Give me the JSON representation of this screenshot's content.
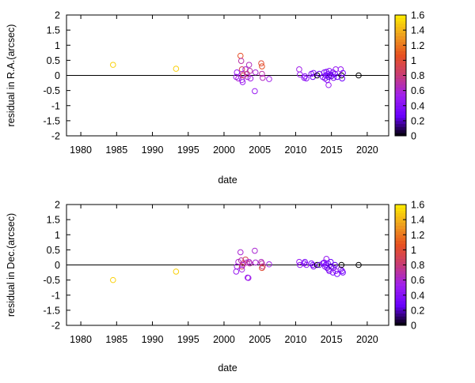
{
  "chart_data": [
    {
      "type": "scatter",
      "xlabel": "date",
      "ylabel": "residual in R.A.(arcsec)",
      "xlim": [
        1978,
        2023
      ],
      "ylim": [
        -2,
        2
      ],
      "xticks": [
        1980,
        1985,
        1990,
        1995,
        2000,
        2005,
        2010,
        2015,
        2020
      ],
      "yticks": [
        -2,
        -1.5,
        -1,
        -0.5,
        0,
        0.5,
        1,
        1.5,
        2
      ],
      "ytick_labels": [
        "-2",
        "-1.5",
        "-1",
        "-0.5",
        "0",
        "0.5",
        "1",
        "1.5",
        "2"
      ],
      "reference_line": 0,
      "colorbar": {
        "range": [
          0,
          1.6
        ],
        "ticks": [
          0,
          0.2,
          0.4,
          0.6,
          0.8,
          1,
          1.2,
          1.4,
          1.6
        ],
        "tick_labels": [
          "0",
          "0.2",
          "0.4",
          "0.6",
          "0.8",
          "1",
          "1.2",
          "1.4",
          "1.6"
        ],
        "palette": [
          "#000000",
          "#6a00ff",
          "#a020f0",
          "#c83c78",
          "#e85020",
          "#f0a020",
          "#ffee00"
        ]
      },
      "points": [
        [
          1984.5,
          0.35,
          1.5
        ],
        [
          1993.3,
          0.22,
          1.5
        ],
        [
          2001.7,
          -0.05,
          0.5
        ],
        [
          2001.8,
          0.1,
          0.5
        ],
        [
          2002.0,
          -0.1,
          0.6
        ],
        [
          2002.3,
          0.65,
          1.05
        ],
        [
          2002.4,
          0.48,
          0.7
        ],
        [
          2002.5,
          0.2,
          0.9
        ],
        [
          2002.5,
          -0.15,
          0.55
        ],
        [
          2002.6,
          -0.22,
          0.5
        ],
        [
          2002.6,
          0.05,
          0.6
        ],
        [
          2002.7,
          0.0,
          0.9
        ],
        [
          2003.0,
          0.2,
          0.6
        ],
        [
          2003.2,
          0.05,
          0.8
        ],
        [
          2003.3,
          -0.05,
          0.6
        ],
        [
          2003.5,
          0.35,
          0.65
        ],
        [
          2003.6,
          0.15,
          0.7
        ],
        [
          2003.7,
          -0.1,
          0.55
        ],
        [
          2004.3,
          -0.52,
          0.5
        ],
        [
          2004.4,
          0.1,
          0.6
        ],
        [
          2005.2,
          0.4,
          1.0
        ],
        [
          2005.3,
          0.3,
          1.05
        ],
        [
          2005.3,
          0.05,
          0.7
        ],
        [
          2005.4,
          -0.08,
          0.65
        ],
        [
          2006.3,
          -0.12,
          0.55
        ],
        [
          2010.5,
          0.2,
          0.55
        ],
        [
          2010.6,
          0.03,
          0.5
        ],
        [
          2011.2,
          -0.08,
          0.45
        ],
        [
          2011.3,
          -0.03,
          0.4
        ],
        [
          2011.5,
          -0.1,
          0.45
        ],
        [
          2012.2,
          0.05,
          0.35
        ],
        [
          2012.4,
          -0.05,
          0.3
        ],
        [
          2012.5,
          0.08,
          0.4
        ],
        [
          2013.0,
          0.0,
          0.0
        ],
        [
          2013.3,
          0.05,
          0.25
        ],
        [
          2013.8,
          -0.05,
          0.35
        ],
        [
          2014.0,
          0.1,
          0.4
        ],
        [
          2014.1,
          -0.1,
          0.45
        ],
        [
          2014.2,
          0.0,
          0.3
        ],
        [
          2014.3,
          0.12,
          0.35
        ],
        [
          2014.4,
          -0.15,
          0.4
        ],
        [
          2014.5,
          0.05,
          0.3
        ],
        [
          2014.6,
          -0.05,
          0.25
        ],
        [
          2014.6,
          -0.32,
          0.5
        ],
        [
          2014.7,
          0.15,
          0.45
        ],
        [
          2014.9,
          0.02,
          0.3
        ],
        [
          2015.0,
          -0.02,
          0.2
        ],
        [
          2015.2,
          0.1,
          0.35
        ],
        [
          2015.3,
          -0.08,
          0.4
        ],
        [
          2015.5,
          0.05,
          0.25
        ],
        [
          2015.6,
          0.2,
          0.5
        ],
        [
          2015.8,
          -0.05,
          0.3
        ],
        [
          2016.3,
          0.2,
          0.5
        ],
        [
          2016.4,
          0.0,
          0.0
        ],
        [
          2016.5,
          -0.1,
          0.3
        ],
        [
          2016.6,
          0.08,
          0.35
        ],
        [
          2018.8,
          0.0,
          0.0
        ]
      ]
    },
    {
      "type": "scatter",
      "xlabel": "date",
      "ylabel": "residual in Dec.(arcsec)",
      "xlim": [
        1978,
        2023
      ],
      "ylim": [
        -2,
        2
      ],
      "xticks": [
        1980,
        1985,
        1990,
        1995,
        2000,
        2005,
        2010,
        2015,
        2020
      ],
      "yticks": [
        -2,
        -1.5,
        -1,
        -0.5,
        0,
        0.5,
        1,
        1.5,
        2
      ],
      "ytick_labels": [
        "-2",
        "-1.5",
        "-1",
        "-0.5",
        "0",
        "0.5",
        "1",
        "1.5",
        "2"
      ],
      "reference_line": 0,
      "colorbar": {
        "range": [
          0,
          1.6
        ],
        "ticks": [
          0,
          0.2,
          0.4,
          0.6,
          0.8,
          1,
          1.2,
          1.4,
          1.6
        ],
        "tick_labels": [
          "0",
          "0.2",
          "0.4",
          "0.6",
          "0.8",
          "1",
          "1.2",
          "1.4",
          "1.6"
        ],
        "palette": [
          "#000000",
          "#6a00ff",
          "#a020f0",
          "#c83c78",
          "#e85020",
          "#f0a020",
          "#ffee00"
        ]
      },
      "points": [
        [
          1984.5,
          -0.5,
          1.5
        ],
        [
          1993.3,
          -0.22,
          1.5
        ],
        [
          2001.7,
          -0.22,
          0.5
        ],
        [
          2001.8,
          -0.05,
          0.55
        ],
        [
          2002.0,
          0.1,
          0.6
        ],
        [
          2002.3,
          0.42,
          0.6
        ],
        [
          2002.4,
          0.15,
          0.7
        ],
        [
          2002.5,
          -0.05,
          0.9
        ],
        [
          2002.5,
          -0.15,
          0.55
        ],
        [
          2002.6,
          0.0,
          0.6
        ],
        [
          2002.7,
          0.05,
          0.8
        ],
        [
          2003.0,
          0.18,
          0.9
        ],
        [
          2003.2,
          0.08,
          0.65
        ],
        [
          2003.3,
          -0.42,
          0.5
        ],
        [
          2003.4,
          -0.43,
          0.55
        ],
        [
          2003.5,
          0.1,
          0.6
        ],
        [
          2003.6,
          0.05,
          0.7
        ],
        [
          2004.3,
          0.47,
          0.6
        ],
        [
          2004.4,
          0.08,
          0.6
        ],
        [
          2005.2,
          0.1,
          0.65
        ],
        [
          2005.3,
          0.05,
          0.7
        ],
        [
          2005.3,
          -0.1,
          1.0
        ],
        [
          2005.4,
          -0.05,
          0.8
        ],
        [
          2006.3,
          0.02,
          0.55
        ],
        [
          2010.5,
          0.1,
          0.5
        ],
        [
          2010.6,
          0.0,
          0.45
        ],
        [
          2011.2,
          0.05,
          0.4
        ],
        [
          2011.3,
          0.1,
          0.35
        ],
        [
          2011.5,
          0.0,
          0.45
        ],
        [
          2012.2,
          0.05,
          0.35
        ],
        [
          2012.4,
          0.0,
          0.3
        ],
        [
          2012.5,
          -0.05,
          0.4
        ],
        [
          2013.0,
          0.0,
          0.0
        ],
        [
          2013.3,
          0.0,
          0.25
        ],
        [
          2013.8,
          0.05,
          0.35
        ],
        [
          2014.0,
          0.08,
          0.4
        ],
        [
          2014.1,
          -0.05,
          0.45
        ],
        [
          2014.2,
          0.0,
          0.3
        ],
        [
          2014.3,
          0.2,
          0.5
        ],
        [
          2014.4,
          -0.1,
          0.4
        ],
        [
          2014.5,
          0.05,
          0.3
        ],
        [
          2014.6,
          -0.15,
          0.25
        ],
        [
          2014.7,
          -0.2,
          0.45
        ],
        [
          2014.9,
          0.1,
          0.3
        ],
        [
          2015.0,
          -0.05,
          0.2
        ],
        [
          2015.2,
          -0.25,
          0.35
        ],
        [
          2015.3,
          -0.1,
          0.4
        ],
        [
          2015.5,
          0.0,
          0.25
        ],
        [
          2015.6,
          -0.2,
          0.5
        ],
        [
          2015.8,
          -0.3,
          0.3
        ],
        [
          2016.3,
          -0.15,
          0.5
        ],
        [
          2016.4,
          0.0,
          0.0
        ],
        [
          2016.5,
          -0.2,
          0.3
        ],
        [
          2016.6,
          -0.25,
          0.35
        ],
        [
          2018.8,
          0.0,
          0.0
        ]
      ]
    }
  ]
}
